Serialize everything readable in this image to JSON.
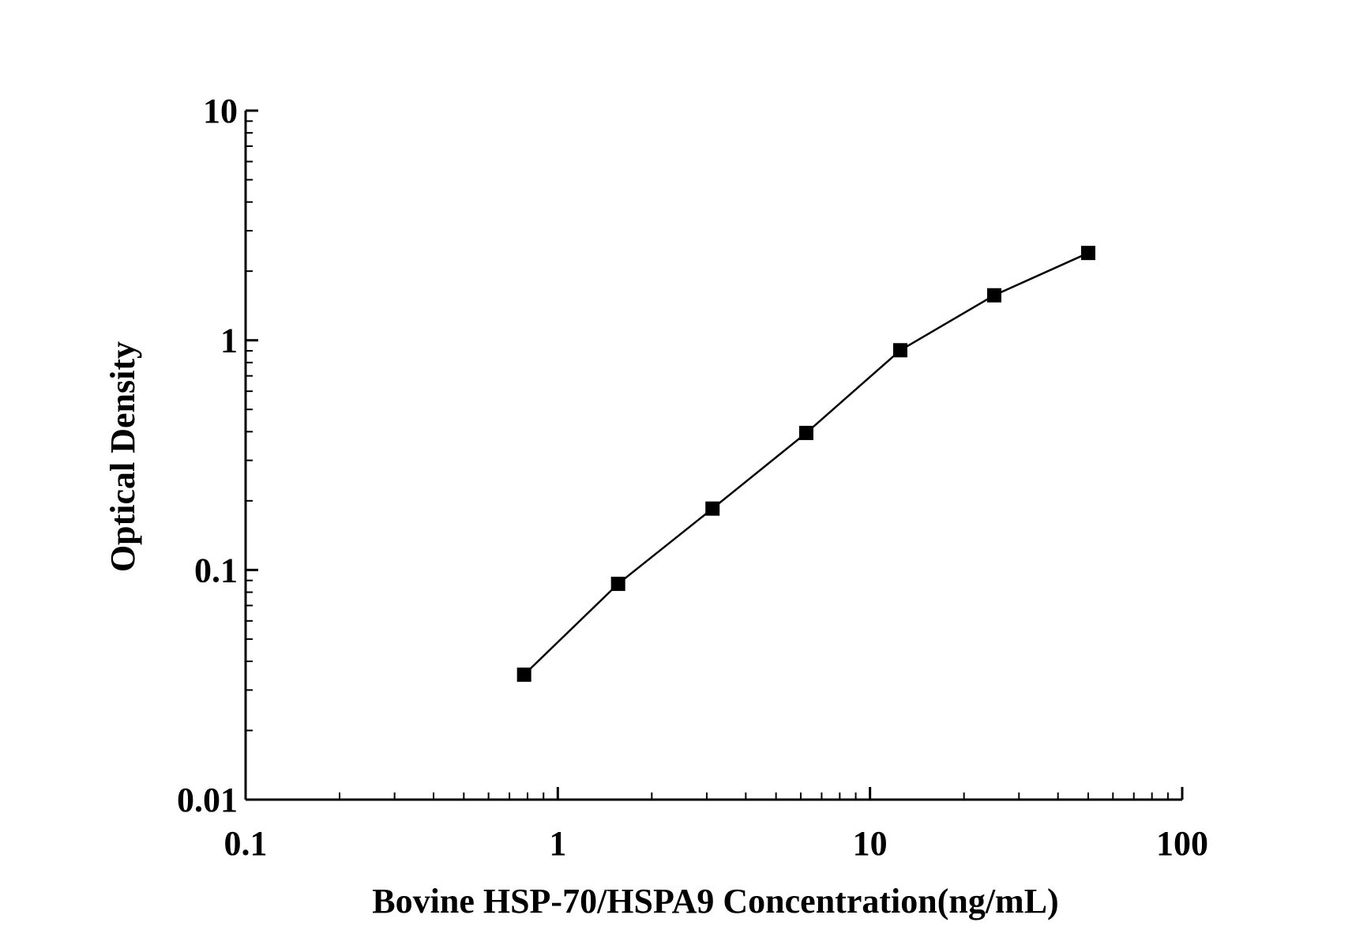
{
  "chart_data": {
    "type": "line",
    "title": "",
    "xlabel": "Bovine HSP-70/HSPA9 Concentration(ng/mL)",
    "ylabel": "Optical Density",
    "xscale": "log",
    "yscale": "log",
    "xlim": [
      0.1,
      100
    ],
    "ylim": [
      0.01,
      10
    ],
    "x_ticks": [
      {
        "value": 0.1,
        "label": "0.1"
      },
      {
        "value": 1,
        "label": "1"
      },
      {
        "value": 10,
        "label": "10"
      },
      {
        "value": 100,
        "label": "100"
      }
    ],
    "y_ticks": [
      {
        "value": 0.01,
        "label": "0.01"
      },
      {
        "value": 0.1,
        "label": "0.1"
      },
      {
        "value": 1,
        "label": "1"
      },
      {
        "value": 10,
        "label": "10"
      }
    ],
    "grid": false,
    "legend": "none",
    "marker": "square",
    "color": "#000000",
    "series": [
      {
        "x": [
          0.78,
          1.56,
          3.13,
          6.25,
          12.5,
          25,
          50
        ],
        "y": [
          0.035,
          0.087,
          0.185,
          0.395,
          0.905,
          1.57,
          2.4
        ]
      }
    ]
  }
}
